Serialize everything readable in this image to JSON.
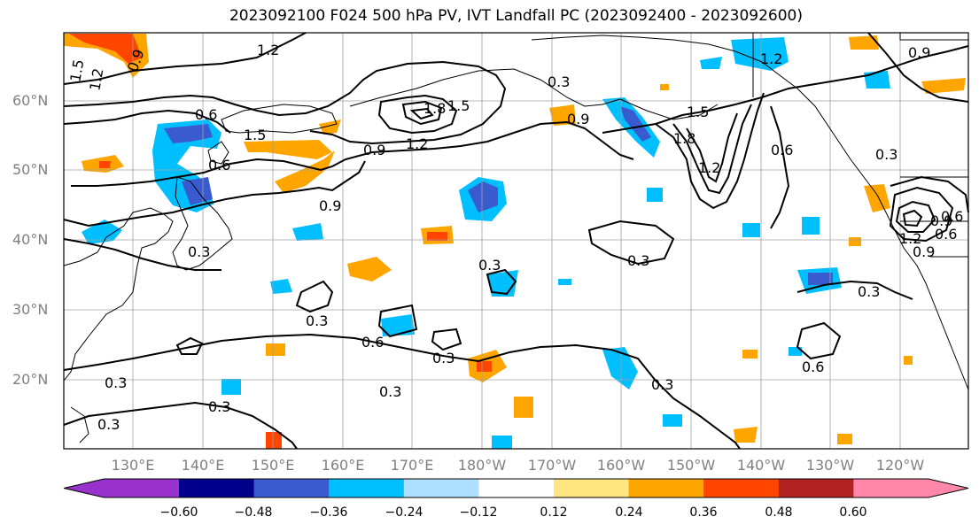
{
  "title": "2023092100 F024 500 hPa PV, IVT Landfall PC (2023092400 - 2023092600)",
  "lat_labels": [
    "60°N",
    "50°N",
    "40°N",
    "30°N",
    "20°N"
  ],
  "lon_labels": [
    "130°E",
    "140°E",
    "150°E",
    "160°E",
    "170°E",
    "180°W",
    "170°W",
    "160°W",
    "150°W",
    "140°W",
    "130°W",
    "120°W"
  ],
  "colorbar": {
    "ticks": [
      "−0.60",
      "−0.48",
      "−0.36",
      "−0.24",
      "−0.12",
      "0.12",
      "0.24",
      "0.36",
      "0.48",
      "0.60"
    ],
    "colors": [
      "#9932cc",
      "#00008b",
      "#3a5bd0",
      "#00bfff",
      "#b0e0ff",
      "#ffffff",
      "#ffe680",
      "#ffa500",
      "#ff4500",
      "#b22222",
      "#ff88aa"
    ]
  },
  "contour_labels": [
    "1.2",
    "1.5",
    "1.2",
    "0.9",
    "0.6",
    "1.5",
    "1.8",
    "1.5",
    "1.2",
    "0.9",
    "0.6",
    "0.9",
    "0.3",
    "0.9",
    "1.5",
    "1.8",
    "1.2",
    "0.6",
    "0.3",
    "1.2",
    "0.9",
    "0.9",
    "0.6",
    "1.2",
    "0.9",
    "0.3",
    "0.3",
    "0.3",
    "0.6",
    "0.3",
    "0.3",
    "0.3",
    "0.3",
    "0.6",
    "0.3",
    "0.3",
    "0.6",
    "0.3",
    "0.3"
  ],
  "colors": {
    "contour": "#000000",
    "grid": "#a0a0a0",
    "axis_label": "#808080"
  }
}
